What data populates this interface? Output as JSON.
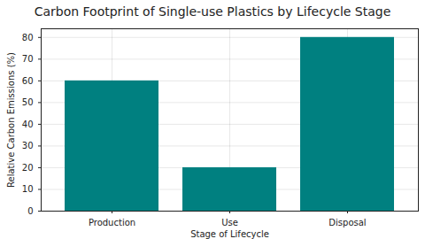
{
  "chart_data": {
    "type": "bar",
    "title": "Carbon Footprint of Single-use Plastics by Lifecycle Stage",
    "x_label": "Stage of Lifecycle",
    "y_label": "Relative Carbon Emissions (%)",
    "categories": [
      "Production",
      "Use",
      "Disposal"
    ],
    "values": [
      60,
      20,
      80
    ],
    "color": "#008080",
    "ylim": [
      0,
      84
    ],
    "yticks": [
      0,
      10,
      20,
      30,
      40,
      50,
      60,
      70,
      80
    ],
    "grid": true
  }
}
